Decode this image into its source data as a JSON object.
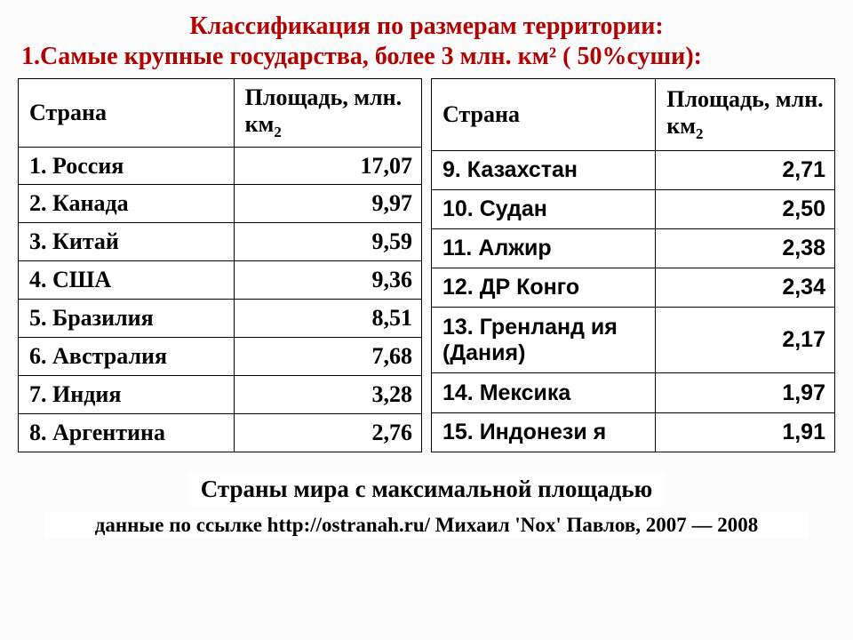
{
  "title_line1": "Классификация по размерам территории:",
  "title_line2": "1.Самые крупные государства, более 3 млн. км² ( 50%суши):",
  "title_color": "#b20000",
  "header": {
    "country": "Страна",
    "area_prefix": "Площадь, млн. км",
    "area_sup": "2"
  },
  "table_left": {
    "rows": [
      {
        "name": "1. Россия",
        "area": "17,07"
      },
      {
        "name": "2. Канада",
        "area": "9,97"
      },
      {
        "name": "3. Китай",
        "area": "9,59"
      },
      {
        "name": "4. США",
        "area": "9,36"
      },
      {
        "name": "5. Бразилия",
        "area": "8,51"
      },
      {
        "name": "6. Австралия",
        "area": "7,68"
      },
      {
        "name": "7. Индия",
        "area": "3,28"
      },
      {
        "name": "8. Аргентина",
        "area": "2,76"
      }
    ]
  },
  "table_right": {
    "rows": [
      {
        "name": "9. Казахстан",
        "area": "2,71"
      },
      {
        "name": "10. Судан",
        "area": "2,50"
      },
      {
        "name": "11. Алжир",
        "area": "2,38"
      },
      {
        "name": "12. ДР Конго",
        "area": "2,34"
      },
      {
        "name": "13.  Гренланд ия (Дания)",
        "area": "2,17"
      },
      {
        "name": "14. Мексика",
        "area": "1,97"
      },
      {
        "name": "15.  Индонези я",
        "area": "1,91"
      }
    ]
  },
  "caption": "Страны мира с максимальной площадью",
  "source": "данные по ссылке http://ostranah.ru/   Михаил 'Nox' Павлов, 2007 — 2008",
  "style": {
    "page_bg": "#fcfcfc",
    "cell_bg": "#ffffff",
    "border_color": "#000000",
    "text_color": "#000000",
    "left_font": "Times New Roman",
    "right_font": "Verdana",
    "cell_fontsize_pt": 19,
    "title_fontsize_pt": 21
  }
}
